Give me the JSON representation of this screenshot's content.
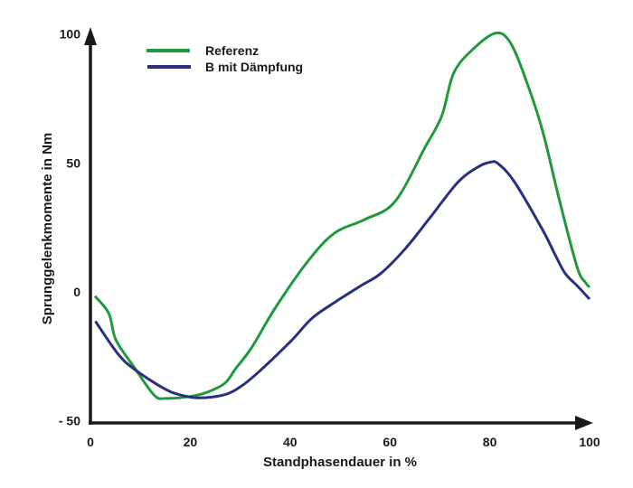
{
  "chart_data": {
    "type": "line",
    "title": "",
    "xlabel": "Standphasendauer in %",
    "ylabel": "Sprunggelenkmomente in Nm",
    "xlim": [
      0,
      100
    ],
    "ylim": [
      -50,
      100
    ],
    "xticks": [
      "0",
      "20",
      "40",
      "60",
      "80",
      "100"
    ],
    "yticks": [
      "- 50",
      "0",
      "50",
      "100"
    ],
    "grid": false,
    "legend_position": "top-left",
    "series": [
      {
        "name": "Referenz",
        "color": "#1f9a3b",
        "x": [
          0.9,
          3.7,
          5.1,
          8.8,
          12.8,
          15.2,
          20.1,
          23.4,
          27,
          29,
          32.3,
          37.1,
          43.6,
          48.9,
          55,
          61,
          67.1,
          70.4,
          72.8,
          76.9,
          81.3,
          84.2,
          87.4,
          90.6,
          93.9,
          97.5,
          99.2,
          100
        ],
        "y": [
          -1.6,
          -8.4,
          -18.6,
          -29.3,
          -40.1,
          -41.3,
          -40.5,
          -38.9,
          -35.3,
          -30,
          -21.6,
          -6,
          12,
          22.8,
          28.1,
          35,
          56.3,
          68.3,
          85,
          94.6,
          100.4,
          96.4,
          81.4,
          62.3,
          36,
          9.6,
          3.6,
          1.8
        ]
      },
      {
        "name": "B mit Dämpfung",
        "color": "#28307f",
        "x": [
          1,
          5.5,
          8.8,
          14.4,
          17.7,
          21.7,
          27,
          30.7,
          34.7,
          40.4,
          44.4,
          49.3,
          54.2,
          58.2,
          63.1,
          68,
          73.6,
          77.7,
          80.1,
          81.7,
          85,
          90.6,
          93.1,
          95.1,
          97.5,
          100
        ],
        "y": [
          -11.4,
          -24,
          -30,
          -37.1,
          -39.8,
          -41.1,
          -39.8,
          -35.9,
          -29.3,
          -18.6,
          -10.2,
          -3.6,
          2.4,
          7.2,
          16.8,
          28.7,
          42.5,
          48.5,
          50.3,
          49.7,
          42.5,
          24,
          14.4,
          7.2,
          2.4,
          -2.8
        ]
      }
    ]
  }
}
